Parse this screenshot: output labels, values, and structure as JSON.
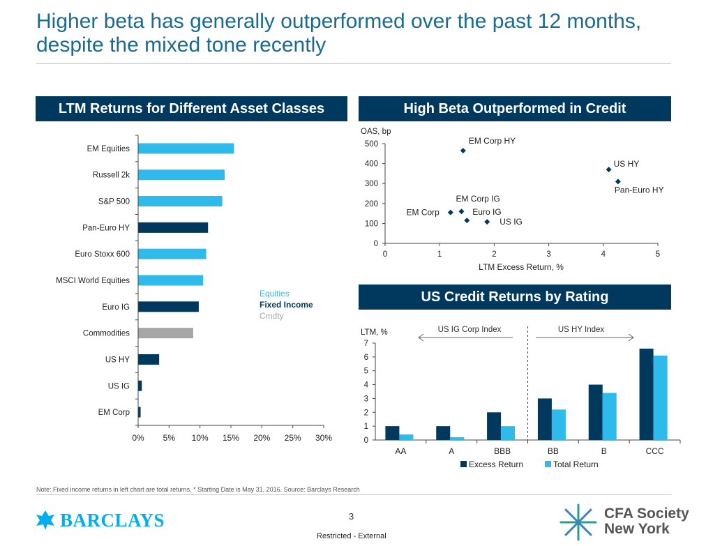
{
  "page": {
    "title": "Higher beta has generally outperformed over the past 12 months, despite the mixed tone recently",
    "note": "Note: Fixed income returns in left chart are total returns. * Starting Date is May 31, 2016.  Source: Barclays Research",
    "page_number": "3",
    "classification": "Restricted - External",
    "logo_left": "BARCLAYS",
    "logo_right_line1": "CFA Society",
    "logo_right_line2": "New York"
  },
  "colors": {
    "equities": "#2ebaeb",
    "fixed_income": "#00395d",
    "cmdty": "#a6a6a6",
    "header_bg": "#00395d",
    "title": "#1a6b8f"
  },
  "chart_data": [
    {
      "type": "bar",
      "orientation": "horizontal",
      "title": "LTM Returns for Different Asset Classes",
      "categories": [
        "EM Equities",
        "Russell 2k",
        "S&P 500",
        "Pan-Euro HY",
        "Euro Stoxx 600",
        "MSCI World Equities",
        "Euro IG",
        "Commodities",
        "US HY",
        "US IG",
        "EM Corp"
      ],
      "values": [
        15.5,
        14.0,
        13.6,
        11.3,
        11.0,
        10.5,
        9.8,
        8.9,
        3.4,
        0.6,
        0.4
      ],
      "groups": [
        "Equities",
        "Equities",
        "Equities",
        "Fixed Income",
        "Equities",
        "Equities",
        "Fixed Income",
        "Cmdty",
        "Fixed Income",
        "Fixed Income",
        "Fixed Income"
      ],
      "legend": [
        "Equities",
        "Fixed Income",
        "Cmdty"
      ],
      "xticks": [
        "0%",
        "5%",
        "10%",
        "15%",
        "20%",
        "25%",
        "30%"
      ],
      "xlim": [
        0,
        30
      ]
    },
    {
      "type": "scatter",
      "title": "High Beta Outperformed in Credit",
      "ylabel": "OAS, bp",
      "xlabel": "LTM Excess Return, %",
      "xlim": [
        0,
        5
      ],
      "ylim": [
        0,
        500
      ],
      "xticks": [
        "0",
        "1",
        "2",
        "3",
        "4",
        "5"
      ],
      "yticks": [
        "0",
        "100",
        "200",
        "300",
        "400",
        "500"
      ],
      "points": [
        {
          "label": "EM Corp HY",
          "x": 1.43,
          "y": 465
        },
        {
          "label": "US HY",
          "x": 4.1,
          "y": 370
        },
        {
          "label": "Pan-Euro HY",
          "x": 4.27,
          "y": 310
        },
        {
          "label": "EM Corp IG",
          "x": 1.4,
          "y": 160
        },
        {
          "label": "EM Corp",
          "x": 1.2,
          "y": 155
        },
        {
          "label": "Euro IG",
          "x": 1.5,
          "y": 115
        },
        {
          "label": "US IG",
          "x": 1.87,
          "y": 108
        }
      ]
    },
    {
      "type": "bar",
      "title": "US Credit Returns by Rating",
      "ylabel": "LTM, %",
      "categories": [
        "AA",
        "A",
        "BBB",
        "BB",
        "B",
        "CCC"
      ],
      "series": [
        {
          "name": "Excess Return",
          "values": [
            1.0,
            1.0,
            2.0,
            3.0,
            4.0,
            6.6
          ]
        },
        {
          "name": "Total Return",
          "values": [
            0.4,
            0.2,
            1.0,
            2.2,
            3.4,
            6.1
          ]
        }
      ],
      "ylim": [
        0,
        7
      ],
      "yticks": [
        "0",
        "1",
        "2",
        "3",
        "4",
        "5",
        "6",
        "7"
      ],
      "annotations": [
        "US IG Corp Index",
        "US HY Index"
      ]
    }
  ]
}
